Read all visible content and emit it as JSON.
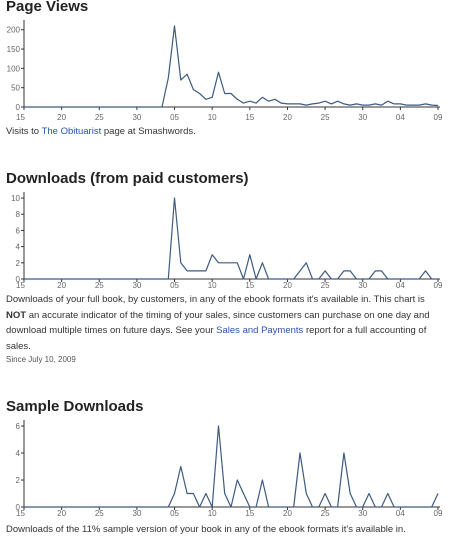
{
  "sections": {
    "page_views": {
      "title": "Page Views",
      "caption_pre": "Visits to ",
      "caption_link": "The Obituarist",
      "caption_post": " page at Smashwords."
    },
    "downloads": {
      "title": "Downloads (from paid customers)",
      "caption_p1": "Downloads of your full book, by customers, in any of the ebook formats it's available in. This chart is ",
      "caption_not": "NOT",
      "caption_p2": " an accurate indicator of the timing of your sales, since customers can purchase on one day and download multiple times on future days. See your ",
      "caption_link": "Sales and Payments",
      "caption_p3": " report for a full accounting of sales.",
      "since": "Since July 10, 2009"
    },
    "samples": {
      "title": "Sample Downloads",
      "caption": "Downloads of the 11% sample version of your book in any of the ebook formats it's available in."
    }
  },
  "colors": {
    "line": "#3d5a80",
    "axis": "#333333",
    "tick_text": "#666666"
  },
  "chart_data": [
    {
      "type": "line",
      "title": "Page Views",
      "x_tick_labels": [
        "15",
        "20",
        "25",
        "30",
        "05",
        "10",
        "15",
        "20",
        "25",
        "30",
        "04",
        "09"
      ],
      "y_ticks": [
        0,
        50,
        100,
        150,
        200
      ],
      "ylim": [
        0,
        220
      ],
      "series": [
        {
          "values": [
            0,
            0,
            0,
            0,
            0,
            0,
            0,
            0,
            0,
            0,
            0,
            0,
            0,
            0,
            0,
            0,
            0,
            0,
            0,
            0,
            0,
            0,
            0,
            75,
            210,
            70,
            85,
            45,
            35,
            20,
            25,
            90,
            35,
            35,
            20,
            10,
            15,
            10,
            25,
            15,
            20,
            10,
            8,
            8,
            8,
            5,
            8,
            10,
            15,
            8,
            15,
            8,
            5,
            8,
            5,
            5,
            8,
            5,
            15,
            8,
            8,
            5,
            5,
            5,
            8,
            5,
            4
          ]
        }
      ]
    },
    {
      "type": "line",
      "title": "Downloads (from paid customers)",
      "x_tick_labels": [
        "15",
        "20",
        "25",
        "30",
        "05",
        "10",
        "15",
        "20",
        "25",
        "30",
        "04",
        "09"
      ],
      "y_ticks": [
        0,
        2,
        4,
        6,
        8,
        10
      ],
      "ylim": [
        0,
        10.5
      ],
      "series": [
        {
          "values": [
            0,
            0,
            0,
            0,
            0,
            0,
            0,
            0,
            0,
            0,
            0,
            0,
            0,
            0,
            0,
            0,
            0,
            0,
            0,
            0,
            0,
            0,
            0,
            0,
            10,
            2,
            1,
            1,
            1,
            1,
            3,
            2,
            2,
            2,
            2,
            0,
            3,
            0,
            2,
            0,
            0,
            0,
            0,
            0,
            1,
            2,
            0,
            0,
            1,
            0,
            0,
            1,
            1,
            0,
            0,
            0,
            1,
            1,
            0,
            0,
            0,
            0,
            0,
            0,
            1,
            0,
            0
          ]
        }
      ]
    },
    {
      "type": "line",
      "title": "Sample Downloads",
      "x_tick_labels": [
        "15",
        "20",
        "25",
        "30",
        "05",
        "10",
        "15",
        "20",
        "25",
        "30",
        "04",
        "09"
      ],
      "y_ticks": [
        0,
        2,
        4,
        6
      ],
      "ylim": [
        0,
        6.3
      ],
      "series": [
        {
          "values": [
            0,
            0,
            0,
            0,
            0,
            0,
            0,
            0,
            0,
            0,
            0,
            0,
            0,
            0,
            0,
            0,
            0,
            0,
            0,
            0,
            0,
            0,
            0,
            0,
            1,
            3,
            1,
            1,
            0,
            1,
            0,
            6,
            1,
            0,
            2,
            1,
            0,
            0,
            2,
            0,
            0,
            0,
            0,
            0,
            4,
            1,
            0,
            0,
            1,
            0,
            0,
            4,
            1,
            0,
            0,
            1,
            0,
            0,
            1,
            0,
            0,
            0,
            0,
            0,
            0,
            0,
            1
          ]
        }
      ]
    }
  ]
}
